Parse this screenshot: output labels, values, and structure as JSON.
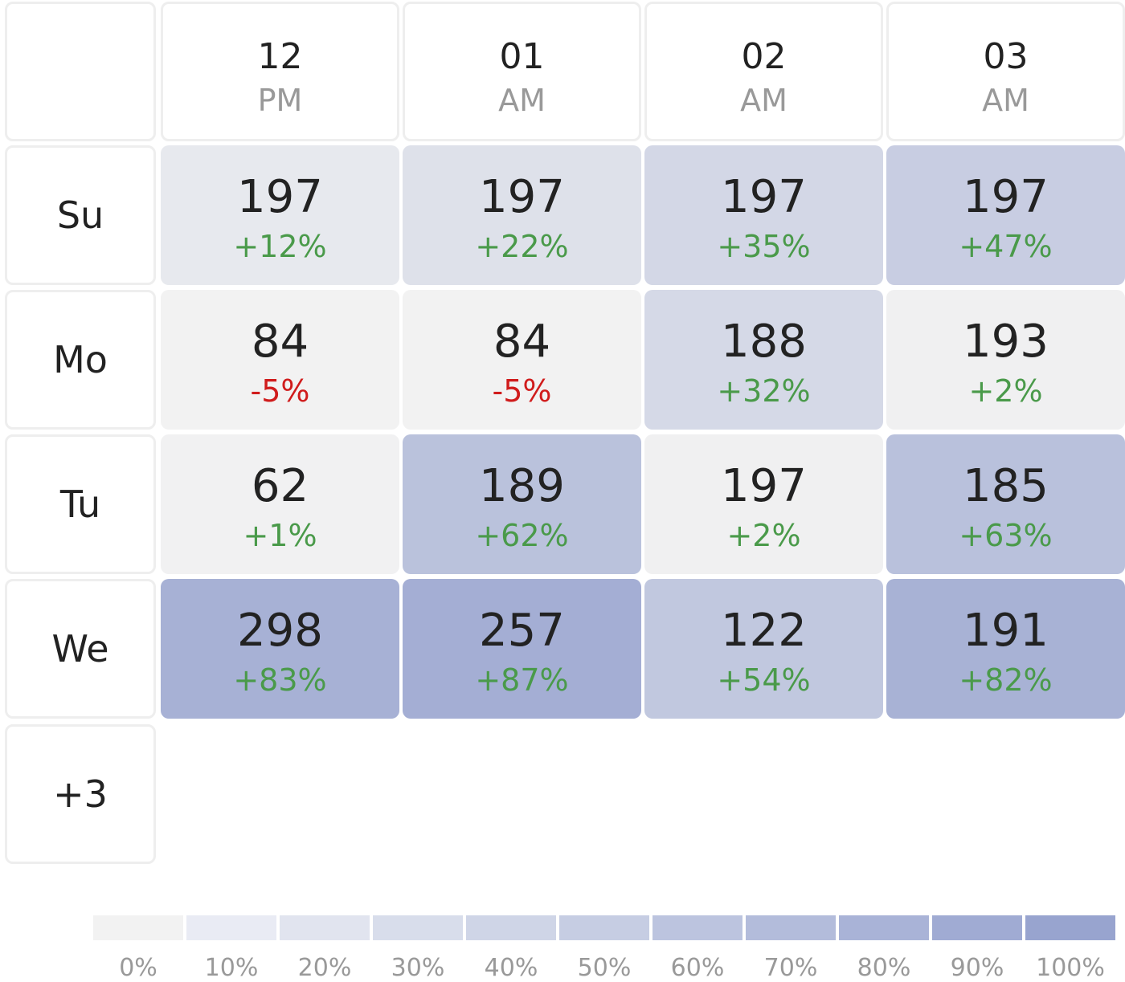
{
  "chart_data": {
    "type": "heatmap",
    "title": "",
    "columns": [
      {
        "hour": "12",
        "period": "PM"
      },
      {
        "hour": "01",
        "period": "AM"
      },
      {
        "hour": "02",
        "period": "AM"
      },
      {
        "hour": "03",
        "period": "AM"
      }
    ],
    "rows": [
      {
        "label": "Su",
        "cells": [
          {
            "value": 197,
            "change": "+12%",
            "intensity": 0.12
          },
          {
            "value": 197,
            "change": "+22%",
            "intensity": 0.22
          },
          {
            "value": 197,
            "change": "+35%",
            "intensity": 0.35
          },
          {
            "value": 197,
            "change": "+47%",
            "intensity": 0.47
          }
        ]
      },
      {
        "label": "Mo",
        "cells": [
          {
            "value": 84,
            "change": "-5%",
            "intensity": 0
          },
          {
            "value": 84,
            "change": "-5%",
            "intensity": 0
          },
          {
            "value": 188,
            "change": "+32%",
            "intensity": 0.32
          },
          {
            "value": 193,
            "change": "+2%",
            "intensity": 0.02
          }
        ]
      },
      {
        "label": "Tu",
        "cells": [
          {
            "value": 62,
            "change": "+1%",
            "intensity": 0.01
          },
          {
            "value": 189,
            "change": "+62%",
            "intensity": 0.62
          },
          {
            "value": 197,
            "change": "+2%",
            "intensity": 0.02
          },
          {
            "value": 185,
            "change": "+63%",
            "intensity": 0.63
          }
        ]
      },
      {
        "label": "We",
        "cells": [
          {
            "value": 298,
            "change": "+83%",
            "intensity": 0.83
          },
          {
            "value": 257,
            "change": "+87%",
            "intensity": 0.87
          },
          {
            "value": 122,
            "change": "+54%",
            "intensity": 0.54
          },
          {
            "value": 191,
            "change": "+82%",
            "intensity": 0.82
          }
        ]
      }
    ],
    "more_rows_label": "+3",
    "legend": {
      "labels": [
        "0%",
        "10%",
        "20%",
        "30%",
        "40%",
        "50%",
        "60%",
        "70%",
        "80%",
        "90%",
        "100%"
      ],
      "colors": [
        "#f2f2f2",
        "#e9ebf4",
        "#e1e4ef",
        "#d8ddeb",
        "#cfd5e7",
        "#c6cde3",
        "#bcc4df",
        "#b3bcdb",
        "#a9b3d7",
        "#a0abd3",
        "#98a4cf"
      ],
      "placement": "bottom"
    },
    "colors": {
      "positive": "#4a9a4a",
      "negative": "#d01c1c"
    }
  }
}
